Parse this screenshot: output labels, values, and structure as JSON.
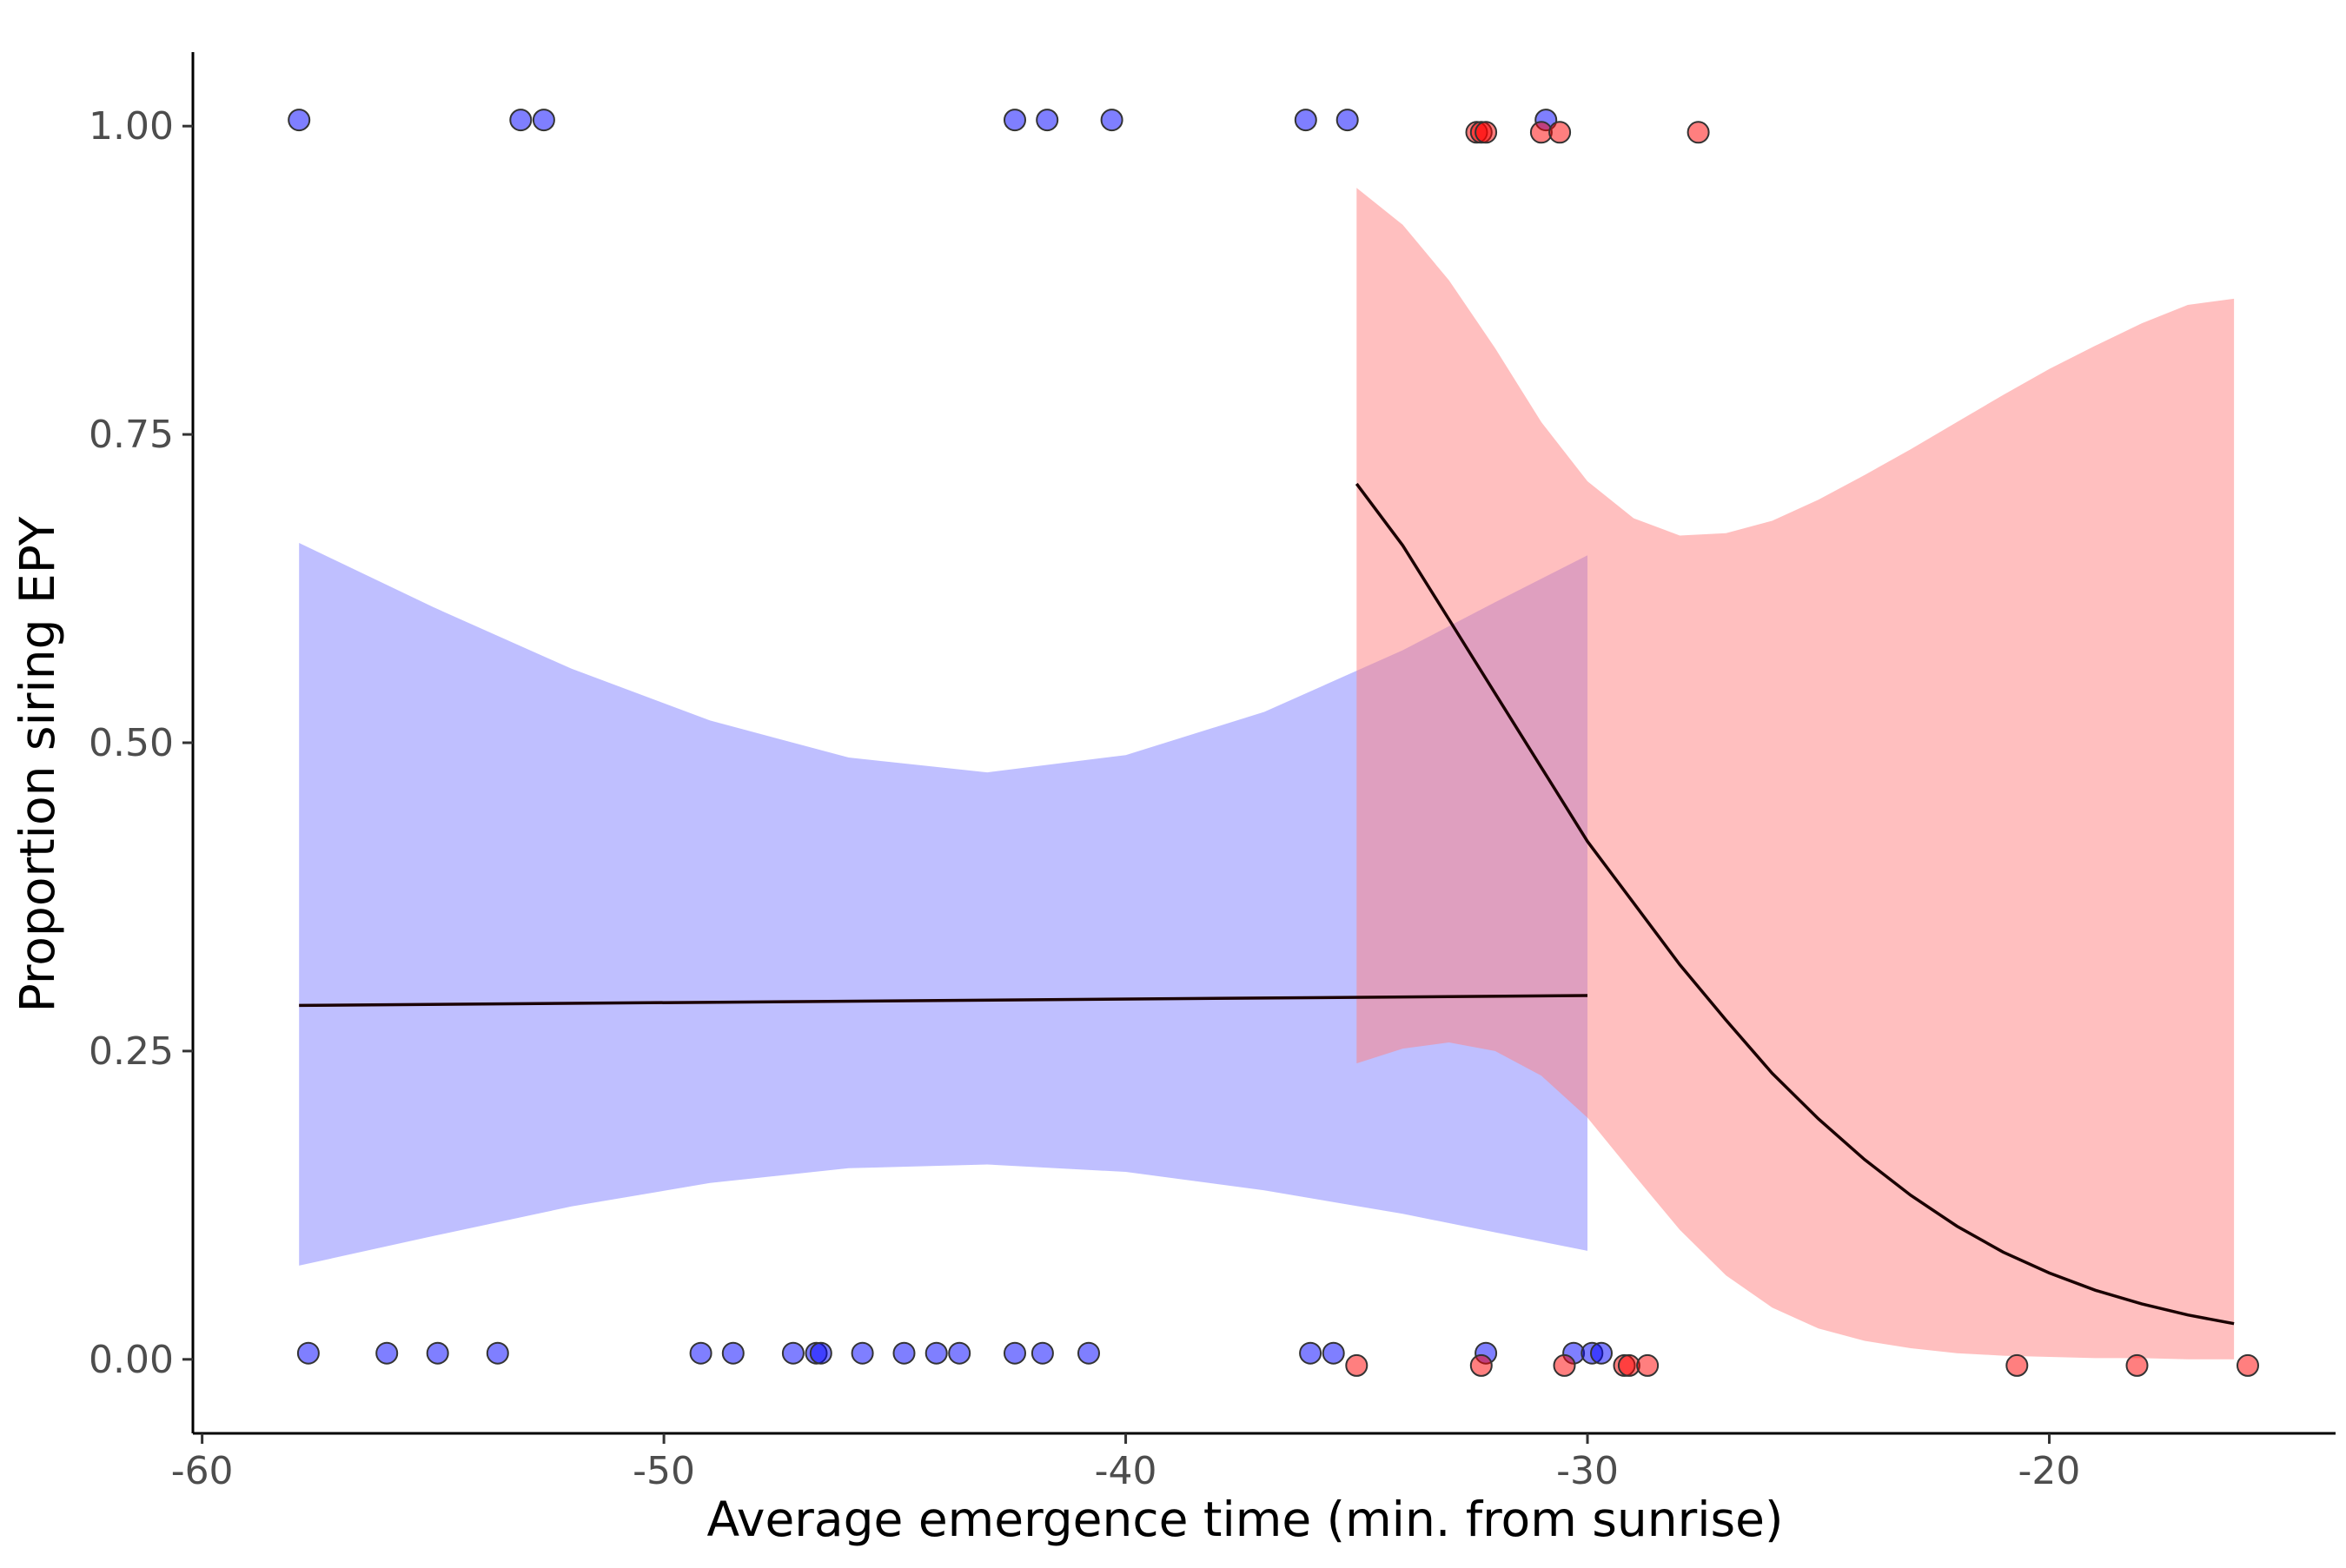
{
  "chart_data": {
    "type": "scatter",
    "title": "",
    "xlabel": "Average emergence time (min. from sunrise)",
    "ylabel": "Proportion siring EPY",
    "xlim": [
      -60.2,
      -13.8
    ],
    "ylim": [
      -0.06,
      1.06
    ],
    "x_ticks": [
      {
        "value": -60,
        "label": "-60"
      },
      {
        "value": -50,
        "label": "-50"
      },
      {
        "value": -40,
        "label": "-40"
      },
      {
        "value": -30,
        "label": "-30"
      },
      {
        "value": -20,
        "label": "-20"
      }
    ],
    "y_ticks": [
      {
        "value": 0,
        "label": "0.00"
      },
      {
        "value": 0.25,
        "label": "0.25"
      },
      {
        "value": 0.5,
        "label": "0.50"
      },
      {
        "value": 0.75,
        "label": "0.75"
      },
      {
        "value": 1,
        "label": "1.00"
      }
    ],
    "grid": false,
    "legend": "none",
    "series": [
      {
        "color": "#0000ff",
        "band_color": "#8080ff",
        "points": [
          [
            -57.9,
            1.005
          ],
          [
            -53.1,
            1.005
          ],
          [
            -52.6,
            1.005
          ],
          [
            -42.4,
            1.005
          ],
          [
            -41.7,
            1.005
          ],
          [
            -40.3,
            1.005
          ],
          [
            -36.1,
            1.005
          ],
          [
            -35.2,
            1.005
          ],
          [
            -30.9,
            1.005
          ],
          [
            -57.7,
            0.005
          ],
          [
            -56.0,
            0.005
          ],
          [
            -54.9,
            0.005
          ],
          [
            -53.6,
            0.005
          ],
          [
            -49.2,
            0.005
          ],
          [
            -48.5,
            0.005
          ],
          [
            -47.2,
            0.005
          ],
          [
            -46.7,
            0.005
          ],
          [
            -46.6,
            0.005
          ],
          [
            -45.7,
            0.005
          ],
          [
            -44.8,
            0.005
          ],
          [
            -44.1,
            0.005
          ],
          [
            -43.6,
            0.005
          ],
          [
            -42.4,
            0.005
          ],
          [
            -41.8,
            0.005
          ],
          [
            -40.8,
            0.005
          ],
          [
            -36.0,
            0.005
          ],
          [
            -35.5,
            0.005
          ],
          [
            -32.2,
            0.005
          ],
          [
            -30.3,
            0.005
          ],
          [
            -29.9,
            0.005
          ],
          [
            -29.7,
            0.005
          ]
        ],
        "fit": [
          [
            -57.9,
            0.287
          ],
          [
            -30.0,
            0.295
          ]
        ],
        "band_upper": [
          [
            -57.9,
            0.662
          ],
          [
            -55.0,
            0.61
          ],
          [
            -52.0,
            0.56
          ],
          [
            -49.0,
            0.518
          ],
          [
            -46.0,
            0.488
          ],
          [
            -43.0,
            0.476
          ],
          [
            -40.0,
            0.49
          ],
          [
            -37.0,
            0.525
          ],
          [
            -34.0,
            0.575
          ],
          [
            -32.0,
            0.614
          ],
          [
            -30.0,
            0.652
          ]
        ],
        "band_lower": [
          [
            -57.9,
            0.076
          ],
          [
            -55.0,
            0.1
          ],
          [
            -52.0,
            0.124
          ],
          [
            -49.0,
            0.143
          ],
          [
            -46.0,
            0.155
          ],
          [
            -43.0,
            0.158
          ],
          [
            -40.0,
            0.152
          ],
          [
            -37.0,
            0.137
          ],
          [
            -34.0,
            0.118
          ],
          [
            -32.0,
            0.103
          ],
          [
            -30.0,
            0.088
          ]
        ]
      },
      {
        "color": "#ff0000",
        "band_color": "#ff8080",
        "points": [
          [
            -32.4,
            0.995
          ],
          [
            -32.3,
            0.995
          ],
          [
            -32.2,
            0.995
          ],
          [
            -31.0,
            0.995
          ],
          [
            -30.6,
            0.995
          ],
          [
            -27.6,
            0.995
          ],
          [
            -35.0,
            -0.005
          ],
          [
            -32.3,
            -0.005
          ],
          [
            -30.5,
            -0.005
          ],
          [
            -29.2,
            -0.005
          ],
          [
            -29.1,
            -0.005
          ],
          [
            -28.7,
            -0.005
          ],
          [
            -20.7,
            -0.005
          ],
          [
            -18.1,
            -0.005
          ],
          [
            -15.7,
            -0.005
          ]
        ],
        "fit": [
          [
            -35.0,
            0.71
          ],
          [
            -34.0,
            0.66
          ],
          [
            -33.0,
            0.6
          ],
          [
            -32.0,
            0.54
          ],
          [
            -31.0,
            0.48
          ],
          [
            -30.0,
            0.42
          ],
          [
            -29.0,
            0.37
          ],
          [
            -28.0,
            0.32
          ],
          [
            -27.0,
            0.275
          ],
          [
            -26.0,
            0.232
          ],
          [
            -25.0,
            0.195
          ],
          [
            -24.0,
            0.162
          ],
          [
            -23.0,
            0.133
          ],
          [
            -22.0,
            0.108
          ],
          [
            -21.0,
            0.087
          ],
          [
            -20.0,
            0.07
          ],
          [
            -19.0,
            0.056
          ],
          [
            -18.0,
            0.045
          ],
          [
            -17.0,
            0.036
          ],
          [
            -16.0,
            0.029
          ]
        ],
        "band_upper": [
          [
            -35.0,
            0.95
          ],
          [
            -34.0,
            0.92
          ],
          [
            -33.0,
            0.875
          ],
          [
            -32.0,
            0.82
          ],
          [
            -31.0,
            0.76
          ],
          [
            -30.0,
            0.712
          ],
          [
            -29.0,
            0.682
          ],
          [
            -28.0,
            0.668
          ],
          [
            -27.0,
            0.67
          ],
          [
            -26.0,
            0.68
          ],
          [
            -25.0,
            0.697
          ],
          [
            -24.0,
            0.717
          ],
          [
            -23.0,
            0.738
          ],
          [
            -22.0,
            0.76
          ],
          [
            -21.0,
            0.782
          ],
          [
            -20.0,
            0.803
          ],
          [
            -19.0,
            0.822
          ],
          [
            -18.0,
            0.84
          ],
          [
            -17.0,
            0.855
          ],
          [
            -16.0,
            0.86
          ]
        ],
        "band_lower": [
          [
            -35.0,
            0.24
          ],
          [
            -34.0,
            0.252
          ],
          [
            -33.0,
            0.257
          ],
          [
            -32.0,
            0.25
          ],
          [
            -31.0,
            0.23
          ],
          [
            -30.0,
            0.196
          ],
          [
            -29.0,
            0.15
          ],
          [
            -28.0,
            0.105
          ],
          [
            -27.0,
            0.068
          ],
          [
            -26.0,
            0.042
          ],
          [
            -25.0,
            0.025
          ],
          [
            -24.0,
            0.015
          ],
          [
            -23.0,
            0.009
          ],
          [
            -22.0,
            0.005
          ],
          [
            -21.0,
            0.003
          ],
          [
            -20.0,
            0.002
          ],
          [
            -19.0,
            0.001
          ],
          [
            -18.0,
            0.001
          ],
          [
            -17.0,
            0.0
          ],
          [
            -16.0,
            0.0
          ]
        ]
      }
    ]
  }
}
